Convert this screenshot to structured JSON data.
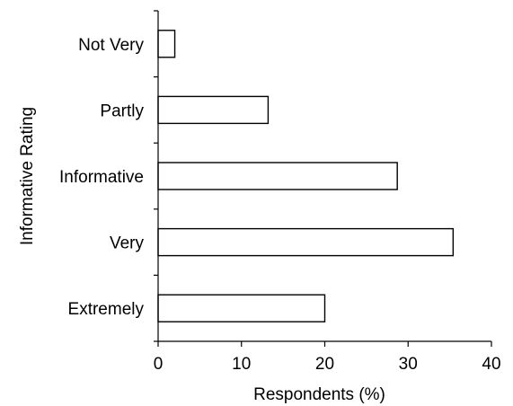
{
  "chart_data": {
    "type": "bar",
    "orientation": "horizontal",
    "title": "",
    "xlabel": "Respondents (%)",
    "ylabel": "Informative Rating",
    "categories": [
      "Not Very",
      "Partly",
      "Informative",
      "Very",
      "Extremely"
    ],
    "values": [
      2,
      13.2,
      28.7,
      35.4,
      20
    ],
    "xlim": [
      0,
      40
    ],
    "xticks": [
      "0",
      "10",
      "20",
      "30",
      "40"
    ],
    "grid": false,
    "legend": "none",
    "bar_fill": "#ffffff",
    "bar_stroke": "#000000"
  }
}
